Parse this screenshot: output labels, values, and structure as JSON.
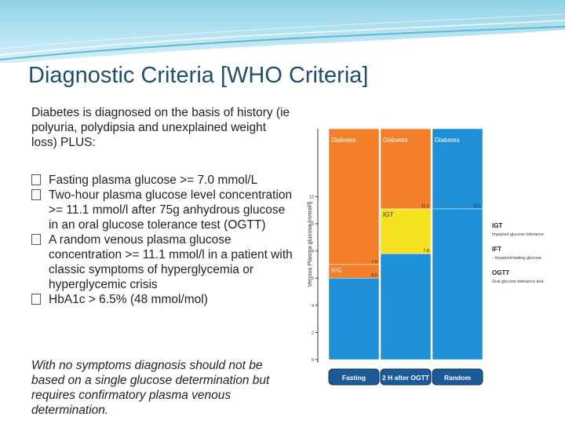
{
  "slide": {
    "title": "Diagnostic Criteria [WHO Criteria]",
    "intro": "Diabetes is diagnosed on the basis of history (ie polyuria, polydipsia and unexplained weight loss) PLUS:",
    "bullets": [
      "Fasting plasma glucose >= 7.0 mmol/L",
      "Two-hour plasma glucose level concentration >= 11.1 mmol/l after 75g anhydrous glucose in an oral glucose tolerance test (OGTT)",
      "A random venous plasma glucose concentration >= 11.1 mmol/l in a patient with classic symptoms of hyperglycemia or hyperglycemic crisis",
      "HbA1c > 6.5% (48 mmol/mol)"
    ],
    "note": "With no symptoms diagnosis should not be based on a single glucose determination but requires confirmatory plasma venous determination."
  },
  "figure": {
    "y_axis_label": "Venous Plasma glucose (mmol/l)",
    "y_ticks": [
      "0",
      "2",
      "4",
      "6",
      "8",
      "10",
      "12"
    ],
    "ylim": [
      0,
      17
    ],
    "columns": [
      "Fasting",
      "2 H after OGTT",
      "Random"
    ],
    "segments": [
      {
        "column": 0,
        "label": "Diabetes",
        "value_label": "7.0",
        "from": 7.0,
        "to": 17,
        "color": "#f37f2a"
      },
      {
        "column": 0,
        "label": "IFG",
        "value_label": "6.0",
        "from": 6.0,
        "to": 7.0,
        "color": "#f37f2a"
      },
      {
        "column": 0,
        "label": "",
        "value_label": "",
        "from": 0,
        "to": 6.0,
        "color": "#1f8fd8"
      },
      {
        "column": 1,
        "label": "Diabetes",
        "value_label": "11.1",
        "from": 11.1,
        "to": 17,
        "color": "#f37f2a"
      },
      {
        "column": 1,
        "label": "IGT",
        "value_label": "7.8",
        "from": 7.8,
        "to": 11.1,
        "color": "#f5e11f"
      },
      {
        "column": 1,
        "label": "",
        "value_label": "",
        "from": 0,
        "to": 7.8,
        "color": "#1f8fd8"
      },
      {
        "column": 2,
        "label": "Diabetes",
        "value_label": "11.1",
        "from": 11.1,
        "to": 17,
        "color": "#1f8fd8"
      },
      {
        "column": 2,
        "label": "",
        "value_label": "",
        "from": 0,
        "to": 11.1,
        "color": "#1f8fd8"
      }
    ],
    "legend": [
      {
        "term": "IGT",
        "desc": "Impaired glucose tolerance"
      },
      {
        "term": "IFT",
        "desc": "- Impaired fasting glucose"
      },
      {
        "term": "OGTT",
        "desc": "Oral glucose tolerance test"
      }
    ],
    "colors": {
      "diabetes": "#f37f2a",
      "igt": "#f5e11f",
      "normal": "#1f8fd8",
      "button": "#1b5b9a"
    }
  }
}
